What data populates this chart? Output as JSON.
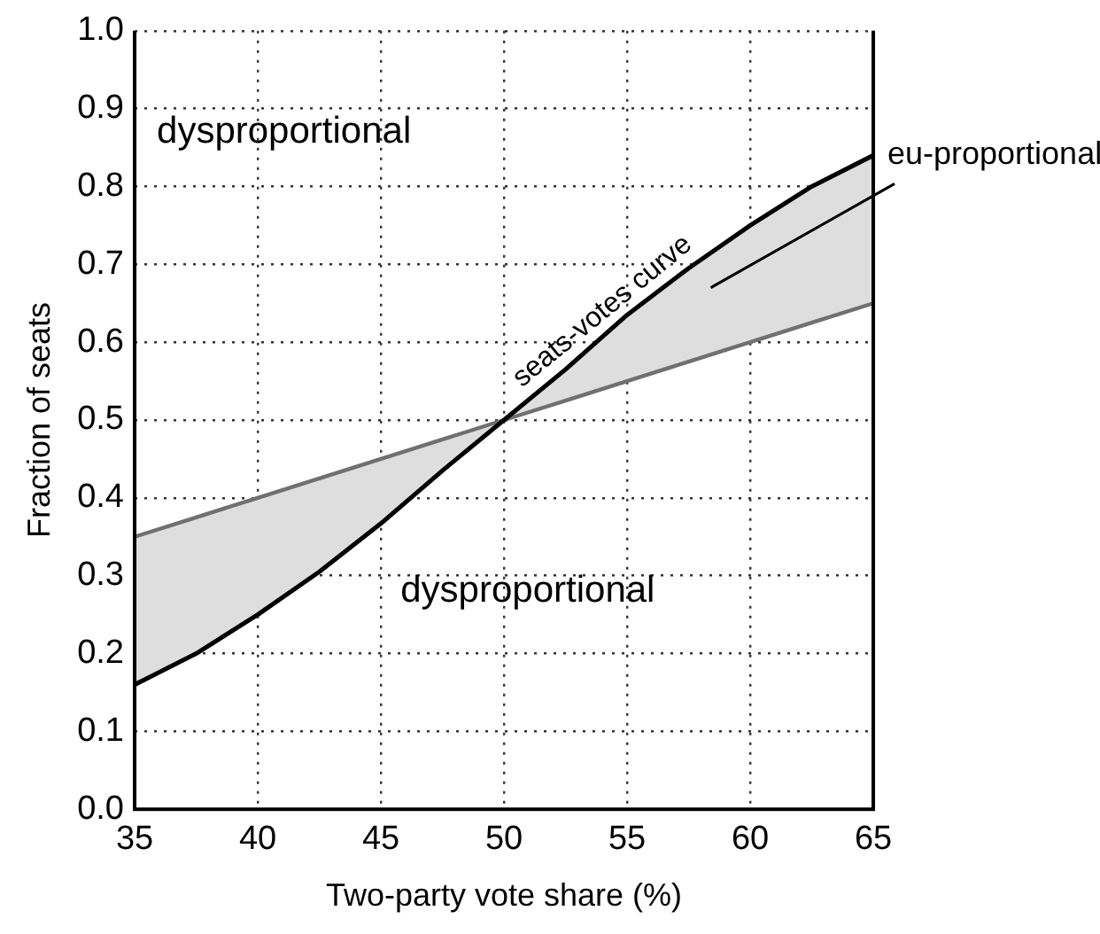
{
  "chart_data": {
    "type": "line",
    "xlabel": "Two‑party vote share (%)",
    "ylabel": "Fraction of seats",
    "x": [
      35,
      37.5,
      40,
      42.5,
      45,
      47.5,
      50,
      52.5,
      55,
      57.5,
      60,
      62.5,
      65
    ],
    "series": [
      {
        "name": "seats-votes curve",
        "color": "#000000",
        "values": [
          0.16,
          0.2,
          0.25,
          0.305,
          0.367,
          0.435,
          0.5,
          0.565,
          0.635,
          0.695,
          0.75,
          0.8,
          0.84
        ]
      },
      {
        "color": "#707070",
        "values": [
          0.35,
          0.375,
          0.4,
          0.425,
          0.45,
          0.475,
          0.5,
          0.525,
          0.55,
          0.575,
          0.6,
          0.625,
          0.65
        ],
        "lower": [
          0.16,
          0.2,
          0.25,
          0.305,
          0.367,
          0.435,
          0.5,
          0.525,
          0.55,
          0.575,
          0.6,
          0.625,
          0.65
        ],
        "upper": [
          0.35,
          0.375,
          0.4,
          0.425,
          0.45,
          0.475,
          0.5,
          0.565,
          0.635,
          0.695,
          0.75,
          0.8,
          0.84
        ]
      }
    ],
    "xlim": [
      35,
      65
    ],
    "xticks": [
      35,
      40,
      45,
      50,
      55,
      60,
      65
    ],
    "ylim": [
      0,
      1
    ],
    "yticks": [
      {
        "value": 0,
        "label": "0.0"
      },
      0.1,
      0.2,
      0.3,
      0.4,
      0.5,
      0.6,
      0.7,
      0.8,
      0.9,
      {
        "value": 1,
        "label": "1.0"
      }
    ],
    "grid": true,
    "legend": false,
    "marker": "none",
    "line_style": "solid",
    "annotations": [
      "dysproportional",
      "dysproportional",
      "eu-proportional"
    ]
  }
}
